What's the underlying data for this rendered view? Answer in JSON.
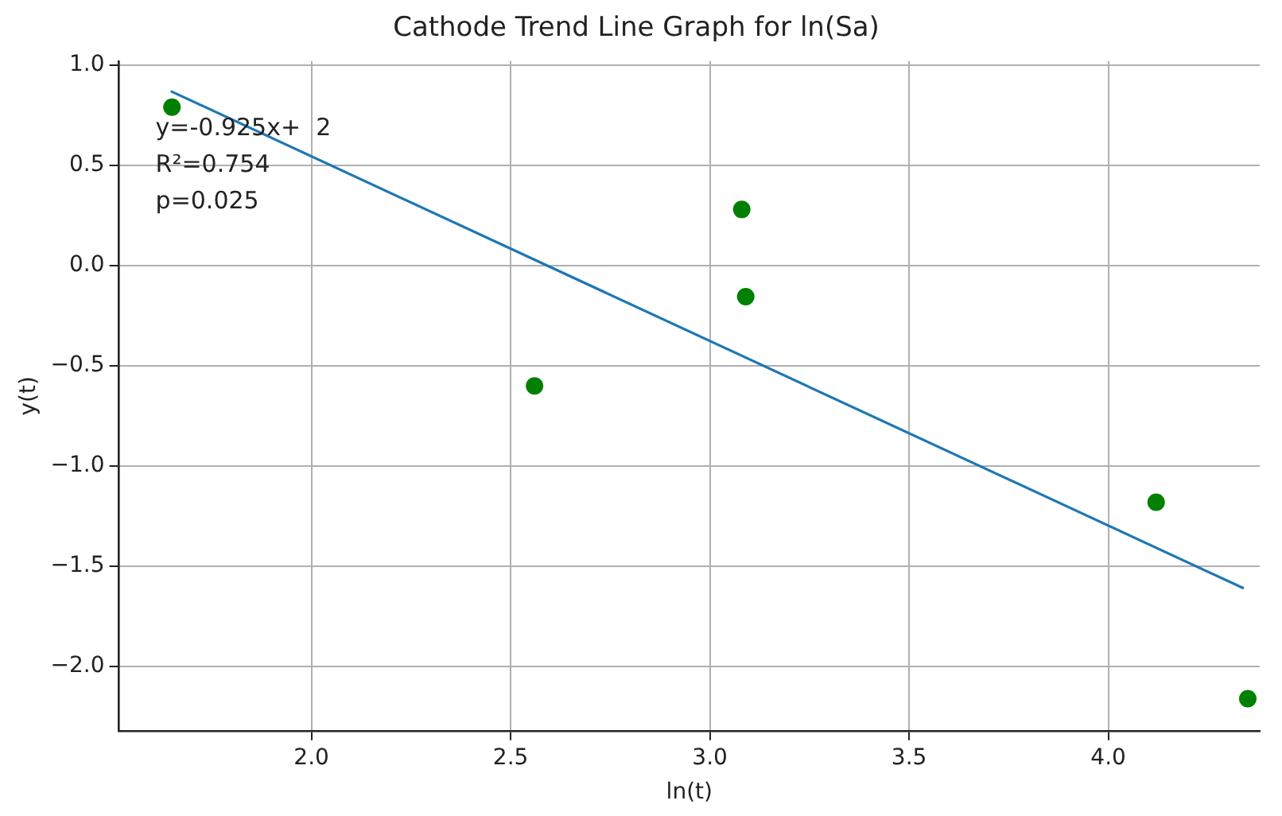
{
  "chart_data": {
    "type": "scatter",
    "title": "Cathode Trend Line Graph for ln(Sa)",
    "xlabel": "ln(t)",
    "ylabel": "y(t)",
    "x": [
      1.65,
      2.56,
      3.08,
      3.09,
      4.12,
      4.35
    ],
    "series": [
      {
        "type": "scatter",
        "color": "#008000",
        "marker": "circle",
        "values": [
          0.79,
          -0.6,
          0.28,
          -0.155,
          -1.18,
          -2.16
        ]
      },
      {
        "type": "line",
        "color": "#1f77b4",
        "x": [
          1.647,
          4.34
        ],
        "values": [
          0.87,
          -1.61
        ]
      }
    ],
    "xlim": [
      1.517,
      4.38
    ],
    "ylim": [
      -2.32,
      1.02
    ],
    "xticks": [
      {
        "value": 2,
        "label": "2.0"
      },
      2.5,
      {
        "value": 3,
        "label": "3.0"
      },
      3.5,
      {
        "value": 4,
        "label": "4.0"
      }
    ],
    "yticks": [
      {
        "value": -2,
        "label": "−2.0"
      },
      {
        "value": -1.5,
        "label": "−1.5"
      },
      {
        "value": -1,
        "label": "−1.0"
      },
      {
        "value": -0.5,
        "label": "−0.5"
      },
      {
        "value": 0,
        "label": "0.0"
      },
      0.5,
      {
        "value": 1,
        "label": "1.0"
      }
    ],
    "grid": true,
    "legend": false,
    "annotations": [
      "y=-0.925x+  2",
      "R²=0.754",
      "p=0.025"
    ]
  }
}
